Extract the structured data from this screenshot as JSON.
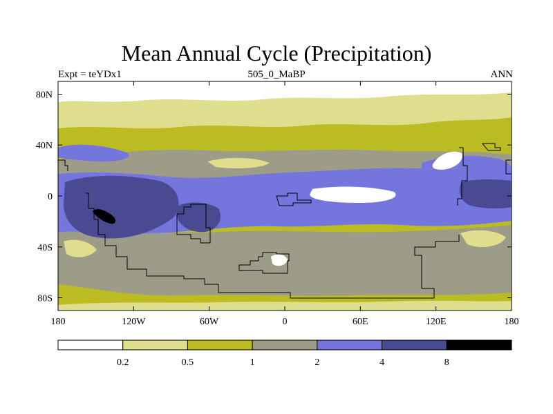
{
  "chart_data": {
    "type": "heatmap",
    "title": "Mean Annual Cycle (Precipitation)",
    "left_string": "Expt = teYDx1",
    "center_string": "505_0_MaBP",
    "right_string": "ANN",
    "x_ticks": [
      "180",
      "120W",
      "60W",
      "0",
      "60E",
      "120E",
      "180"
    ],
    "x_tick_values": [
      -180,
      -120,
      -60,
      0,
      60,
      120,
      180
    ],
    "y_ticks": [
      "80N",
      "40N",
      "0",
      "40S",
      "80S"
    ],
    "y_tick_values": [
      80,
      40,
      0,
      -40,
      -80
    ],
    "xlim": [
      -180,
      180
    ],
    "ylim": [
      -90,
      90
    ],
    "colorbar": {
      "levels": [
        "0.2",
        "0.5",
        "1",
        "2",
        "4",
        "8"
      ],
      "colors": [
        "#ffffff",
        "#dede8c",
        "#bbbb22",
        "#9c9c88",
        "#7575de",
        "#4a4a92",
        "#000000"
      ]
    },
    "fields": {
      "background": "#bbbb22",
      "polar_dry": "#dede8c",
      "north_cap": "#ffffff",
      "mid_lat_wet": "#9c9c88",
      "storm_track": "#7575de",
      "tropical_wet": "#4a4a92",
      "max_wet": "#000000"
    }
  }
}
